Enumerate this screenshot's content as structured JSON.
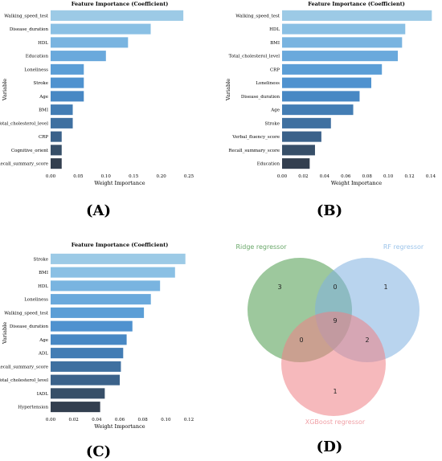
{
  "panels": [
    {
      "label": "(A)"
    },
    {
      "label": "(B)"
    },
    {
      "label": "(C)"
    },
    {
      "label": "(D)"
    }
  ],
  "chart_data": [
    {
      "type": "bar",
      "orientation": "horizontal",
      "title": "Feature Importance (Coefficient)",
      "xlabel": "Weight Importance",
      "ylabel": "Variable",
      "xlim": [
        0,
        0.25
      ],
      "xticks": [
        "0.00",
        "0.05",
        "0.10",
        "0.15",
        "0.20",
        "0.25"
      ],
      "categories": [
        "Walking_speed_test",
        "Disease_duration",
        "HDL",
        "Education",
        "Loneliness",
        "Stroke",
        "Age",
        "BMI",
        "Total_cholesterol_level",
        "CRP",
        "Cognitive_orient",
        "Recall_summary_score"
      ],
      "values": [
        0.24,
        0.181,
        0.14,
        0.1,
        0.06,
        0.06,
        0.06,
        0.04,
        0.04,
        0.02,
        0.02,
        0.02
      ]
    },
    {
      "type": "bar",
      "orientation": "horizontal",
      "title": "Feature Importance (Coefficient)",
      "xlabel": "Weight Importance",
      "ylabel": "Variable",
      "xlim": [
        0,
        0.14
      ],
      "xticks": [
        "0.00",
        "0.02",
        "0.04",
        "0.06",
        "0.08",
        "0.10",
        "0.12",
        "0.14"
      ],
      "categories": [
        "Walking_speed_test",
        "HDL",
        "BMI",
        "Total_cholesterol_level",
        "CRP",
        "Loneliness",
        "Disease_duration",
        "Age",
        "Stroke",
        "Verbal_fluency_score",
        "Recall_summary_score",
        "Education"
      ],
      "values": [
        0.141,
        0.116,
        0.113,
        0.109,
        0.094,
        0.084,
        0.073,
        0.067,
        0.046,
        0.037,
        0.031,
        0.026
      ]
    },
    {
      "type": "bar",
      "orientation": "horizontal",
      "title": "Feature Importance (Coefficient)",
      "xlabel": "Weight Importance",
      "ylabel": "Variable",
      "xlim": [
        0,
        0.12
      ],
      "xticks": [
        "0.00",
        "0.02",
        "0.04",
        "0.06",
        "0.08",
        "0.10",
        "0.12"
      ],
      "categories": [
        "Stroke",
        "BMI",
        "HDL",
        "Loneliness",
        "Walking_speed_test",
        "Disease_duration",
        "Age",
        "ADL",
        "Recall_summary_score",
        "Total_cholesterol_level",
        "IADL",
        "Hypertension"
      ],
      "values": [
        0.117,
        0.108,
        0.095,
        0.087,
        0.081,
        0.071,
        0.066,
        0.063,
        0.061,
        0.06,
        0.047,
        0.043
      ]
    },
    {
      "type": "venn",
      "sets": [
        {
          "name": "Ridge regressor",
          "color": "#4c9a4c",
          "label_color": "#6aa86a"
        },
        {
          "name": "RF regressor",
          "color": "#7fb0e0",
          "label_color": "#9cc4ea"
        },
        {
          "name": "XGBoost regressor",
          "color": "#ef7f85",
          "label_color": "#f0a0a6"
        }
      ],
      "regions": {
        "ridge_only": "3",
        "rf_only": "1",
        "xgb_only": "1",
        "ridge_rf": "0",
        "ridge_xgb": "0",
        "rf_xgb": "2",
        "all": "9"
      }
    }
  ],
  "bar_colors": [
    "#9ccae6",
    "#8ac0e4",
    "#79b4e0",
    "#6aa9dc",
    "#5b9ed6",
    "#4f92cf",
    "#4888c4",
    "#437db4",
    "#3f70a0",
    "#3b628a",
    "#374f68",
    "#333f4f"
  ]
}
